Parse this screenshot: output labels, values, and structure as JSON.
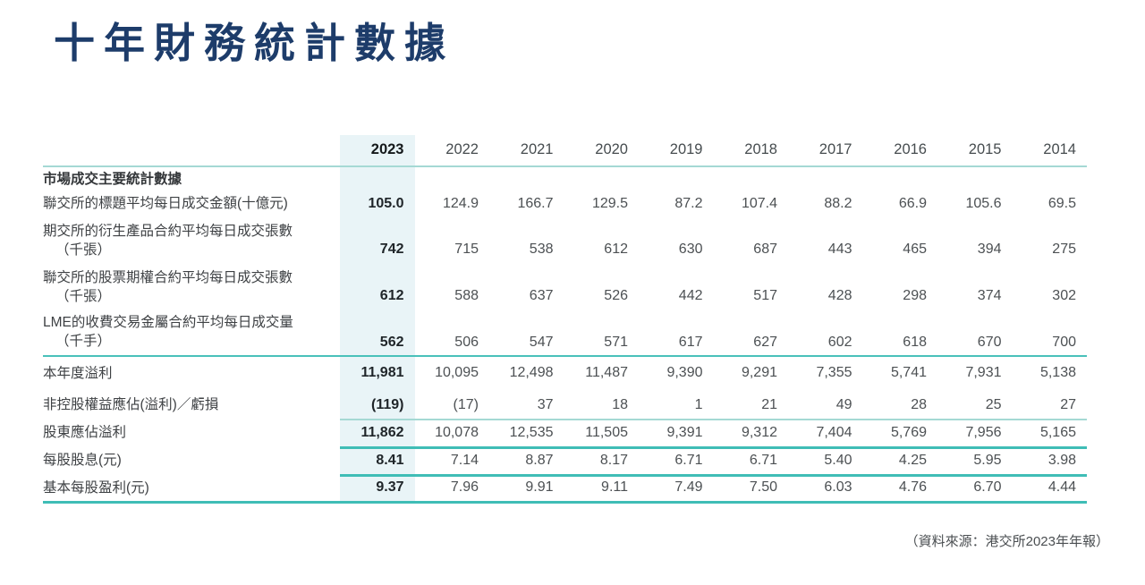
{
  "page": {
    "title": "十年財務統計數據",
    "source_note": "（資料來源：港交所2023年年報）"
  },
  "colors": {
    "title_navy": "#1d3c6a",
    "teal_line": "#3fbdb6",
    "teal_line_light": "#a5d9d4",
    "highlight_column_bg": "#e9f4f7"
  },
  "table": {
    "years": [
      "2023",
      "2022",
      "2021",
      "2020",
      "2019",
      "2018",
      "2017",
      "2016",
      "2015",
      "2014"
    ],
    "section_header": "市場成交主要統計數據",
    "rows": [
      {
        "label": "聯交所的標題平均每日成交金額(十億元)",
        "label_line2": "",
        "values": [
          "105.0",
          "124.9",
          "166.7",
          "129.5",
          "87.2",
          "107.4",
          "88.2",
          "66.9",
          "105.6",
          "69.5"
        ]
      },
      {
        "label": "期交所的衍生產品合約平均每日成交張數",
        "label_line2": "（千張）",
        "values": [
          "742",
          "715",
          "538",
          "612",
          "630",
          "687",
          "443",
          "465",
          "394",
          "275"
        ]
      },
      {
        "label": "聯交所的股票期權合約平均每日成交張數",
        "label_line2": "（千張）",
        "values": [
          "612",
          "588",
          "637",
          "526",
          "442",
          "517",
          "428",
          "298",
          "374",
          "302"
        ]
      },
      {
        "label": "LME的收費交易金屬合約平均每日成交量",
        "label_line2": "（千手）",
        "values": [
          "562",
          "506",
          "547",
          "571",
          "617",
          "627",
          "602",
          "618",
          "670",
          "700"
        ]
      },
      {
        "label": "本年度溢利",
        "label_line2": "",
        "values": [
          "11,981",
          "10,095",
          "12,498",
          "11,487",
          "9,390",
          "9,291",
          "7,355",
          "5,741",
          "7,931",
          "5,138"
        ]
      },
      {
        "label": "非控股權益應佔(溢利)／虧損",
        "label_line2": "",
        "values": [
          "(119)",
          "(17)",
          "37",
          "18",
          "1",
          "21",
          "49",
          "28",
          "25",
          "27"
        ]
      },
      {
        "label": "股東應佔溢利",
        "label_line2": "",
        "values": [
          "11,862",
          "10,078",
          "12,535",
          "11,505",
          "9,391",
          "9,312",
          "7,404",
          "5,769",
          "7,956",
          "5,165"
        ]
      },
      {
        "label": "每股股息(元)",
        "label_line2": "",
        "values": [
          "8.41",
          "7.14",
          "8.87",
          "8.17",
          "6.71",
          "6.71",
          "5.40",
          "4.25",
          "5.95",
          "3.98"
        ]
      },
      {
        "label": "基本每股盈利(元)",
        "label_line2": "",
        "values": [
          "9.37",
          "7.96",
          "9.91",
          "9.11",
          "7.49",
          "7.50",
          "6.03",
          "4.76",
          "6.70",
          "4.44"
        ]
      }
    ]
  }
}
